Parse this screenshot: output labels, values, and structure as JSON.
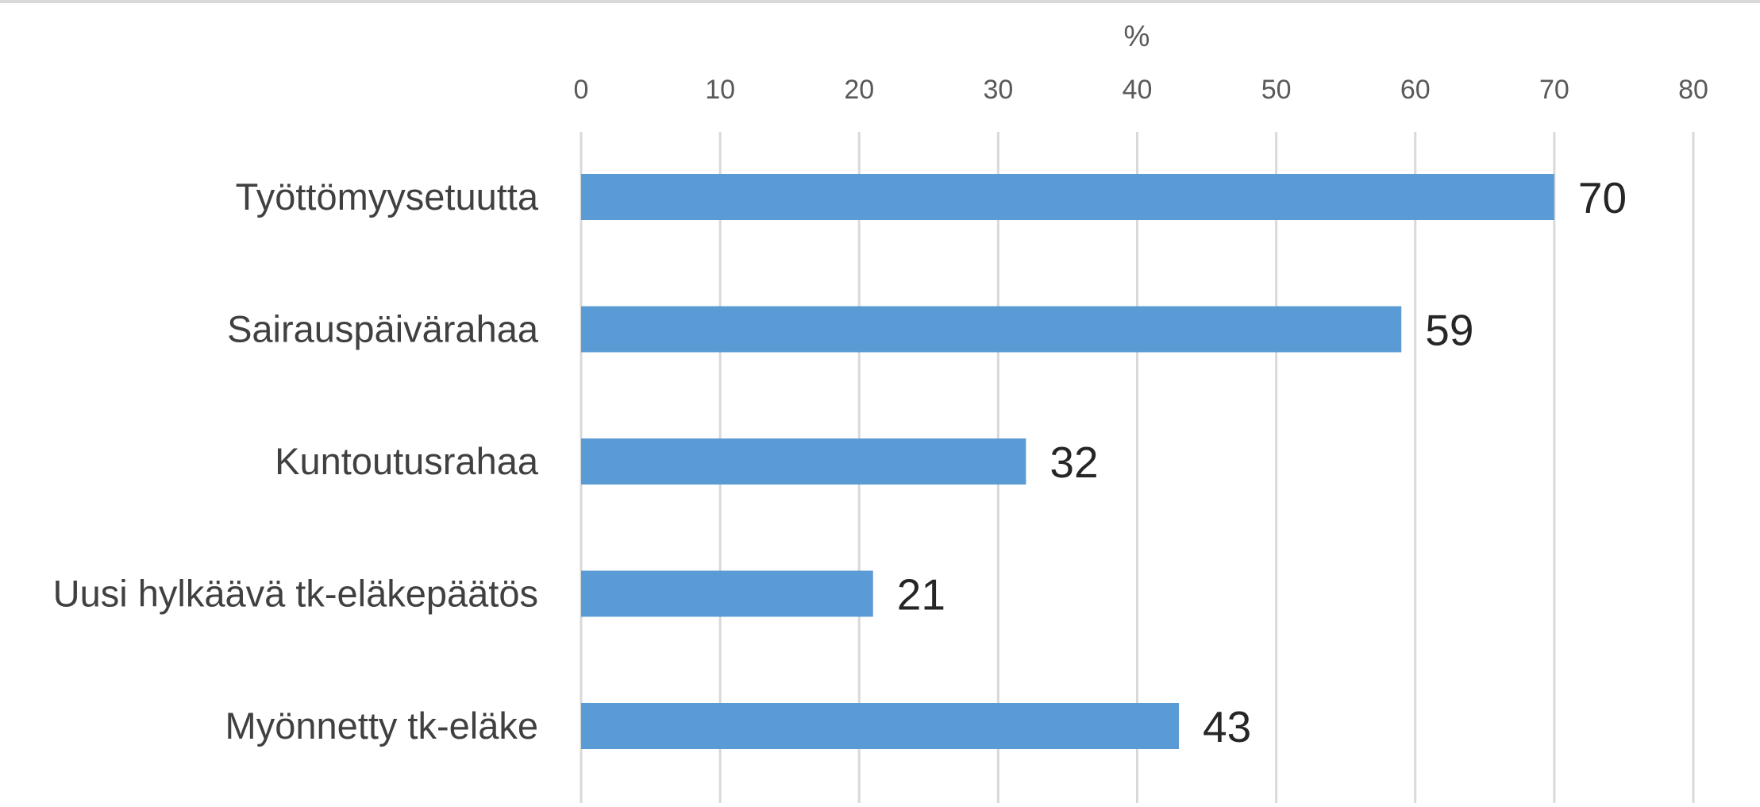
{
  "chart_data": {
    "type": "bar",
    "orientation": "horizontal",
    "xlabel": "%",
    "ylabel": "",
    "xlim": [
      0,
      80
    ],
    "x_ticks": [
      0,
      10,
      20,
      30,
      40,
      50,
      60,
      70,
      80
    ],
    "x_axis_position": "top",
    "grid": true,
    "categories": [
      "Työttömyysetuutta",
      "Sairauspäivärahaa",
      "Kuntoutusrahaa",
      "Uusi hylkäävä tk-eläkepäätös",
      "Myönnetty tk-eläke"
    ],
    "values": [
      70,
      59,
      32,
      21,
      43
    ],
    "data_labels": [
      "70",
      "59",
      "32",
      "21",
      "43"
    ],
    "bar_color": "#5b9bd5"
  }
}
